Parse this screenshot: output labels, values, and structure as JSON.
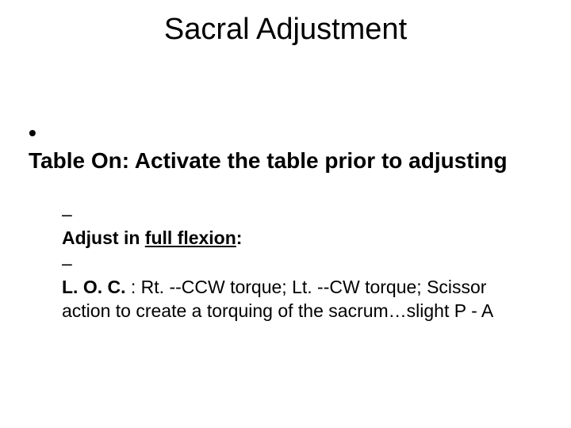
{
  "slide": {
    "background_color": "#ffffff",
    "text_color": "#000000",
    "title": {
      "text": "Sacral Adjustment",
      "fontsize": 38,
      "weight": 400,
      "align": "center"
    },
    "bullets": {
      "level1_fontsize": 28,
      "level2_fontsize": 23,
      "level1_marker": "•",
      "level2_marker": "–",
      "items": [
        {
          "level": 1,
          "bold": true,
          "text": "Table On: Activate the table prior to adjusting"
        },
        {
          "level": 2,
          "runs": [
            {
              "text": "Adjust in ",
              "bold": true
            },
            {
              "text": "full flexion",
              "bold": true,
              "underline": true
            },
            {
              "text": ":",
              "bold": true
            }
          ]
        },
        {
          "level": 2,
          "runs": [
            {
              "text": "L. O. C. ",
              "bold": true
            },
            {
              "text": ": Rt. --CCW torque; Lt. --CW torque; Scissor action to create a torquing of the sacrum…slight P - A"
            }
          ]
        }
      ]
    }
  }
}
